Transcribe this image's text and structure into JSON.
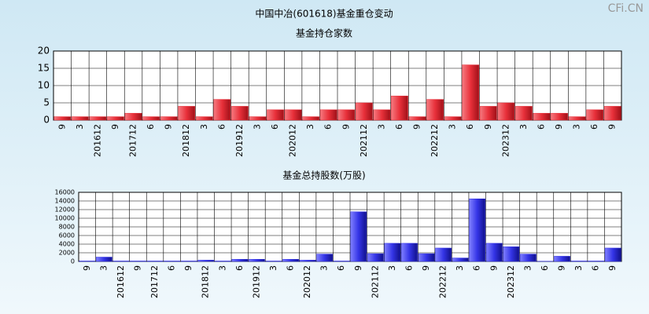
{
  "title": "中国中冶(601618)基金重仓变动",
  "watermark": "CFi.CN",
  "chart_data": [
    {
      "type": "bar",
      "title": "基金持仓家数",
      "categories": [
        "9",
        "3",
        "201612",
        "9",
        "201712",
        "6",
        "9",
        "201812",
        "3",
        "6",
        "201912",
        "3",
        "6",
        "202012",
        "3",
        "6",
        "9",
        "202112",
        "3",
        "6",
        "9",
        "202212",
        "3",
        "6",
        "9",
        "202312",
        "3",
        "6",
        "9",
        "3",
        "6",
        "9"
      ],
      "values": [
        1,
        1,
        1,
        1,
        2,
        1,
        1,
        4,
        1,
        6,
        4,
        1,
        3,
        3,
        1,
        3,
        3,
        5,
        3,
        7,
        1,
        6,
        1,
        16,
        4,
        5,
        4,
        2,
        2,
        1,
        3,
        4
      ],
      "color": "#e8303a",
      "ylim": [
        0,
        20
      ],
      "yticks": [
        0,
        5,
        10,
        15,
        20
      ],
      "grid": true
    },
    {
      "type": "bar",
      "title": "基金总持股数(万股)",
      "categories": [
        "9",
        "3",
        "201612",
        "9",
        "201712",
        "6",
        "9",
        "201812",
        "3",
        "6",
        "201912",
        "3",
        "6",
        "202012",
        "3",
        "6",
        "9",
        "202112",
        "3",
        "6",
        "9",
        "202212",
        "3",
        "6",
        "9",
        "202312",
        "3",
        "6",
        "9",
        "3",
        "6",
        "9"
      ],
      "values": [
        100,
        1000,
        100,
        100,
        100,
        100,
        100,
        300,
        100,
        500,
        500,
        100,
        500,
        300,
        1700,
        100,
        11500,
        1800,
        4200,
        4200,
        1800,
        3100,
        800,
        14500,
        4200,
        3400,
        1700,
        50,
        1200,
        100,
        100,
        3100
      ],
      "color": "#3434e6",
      "ylim": [
        0,
        16000
      ],
      "yticks": [
        0,
        2000,
        4000,
        6000,
        8000,
        10000,
        12000,
        14000,
        16000
      ],
      "grid": true
    }
  ]
}
